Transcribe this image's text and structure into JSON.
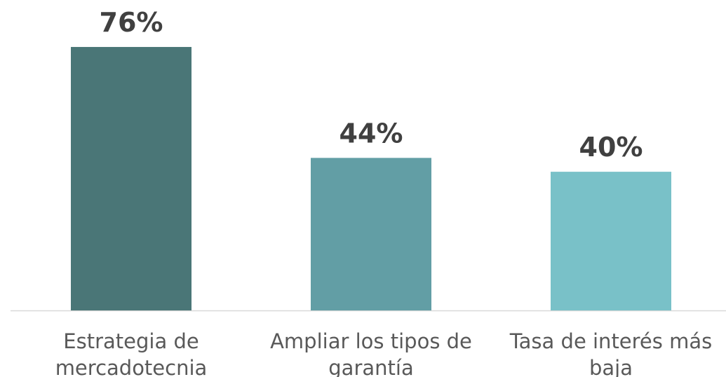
{
  "chart_data": {
    "type": "bar",
    "categories": [
      "Estrategia de mercadotecnia",
      "Ampliar los tipos de garantía",
      "Tasa de interés más baja"
    ],
    "values": [
      76,
      44,
      40
    ],
    "value_labels": [
      "76%",
      "44%",
      "40%"
    ],
    "colors": [
      "#4a7677",
      "#629ea5",
      "#79c1c8"
    ]
  }
}
